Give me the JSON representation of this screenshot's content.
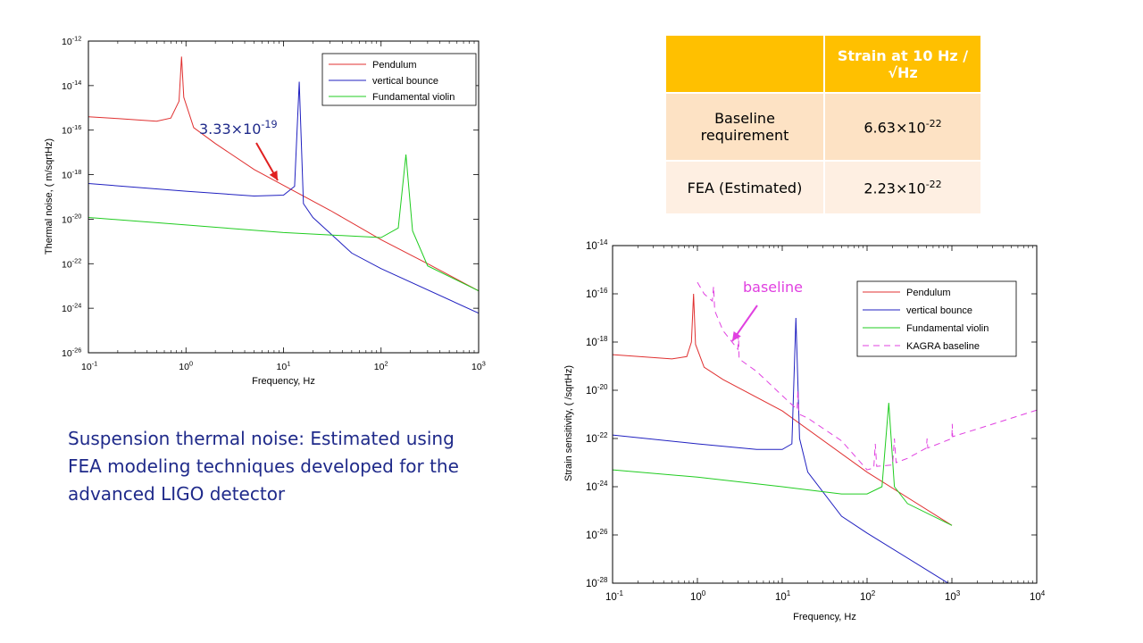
{
  "chart_data": [
    {
      "type": "line",
      "xlabel": "Frequency, Hz",
      "ylabel": "Thermal noise, ( m/sqrtHz)",
      "xscale": "log",
      "yscale": "log",
      "xlim": [
        0.1,
        1000
      ],
      "ylim": [
        1e-26,
        1e-12
      ],
      "x_tick_labels": [
        {
          "base": "10",
          "exp": "-1"
        },
        {
          "base": "10",
          "exp": "0"
        },
        {
          "base": "10",
          "exp": "1"
        },
        {
          "base": "10",
          "exp": "2"
        },
        {
          "base": "10",
          "exp": "3"
        }
      ],
      "y_tick_labels": [
        {
          "base": "10",
          "exp": "-26"
        },
        {
          "base": "10",
          "exp": "-24"
        },
        {
          "base": "10",
          "exp": "-22"
        },
        {
          "base": "10",
          "exp": "-20"
        },
        {
          "base": "10",
          "exp": "-18"
        },
        {
          "base": "10",
          "exp": "-16"
        },
        {
          "base": "10",
          "exp": "-14"
        },
        {
          "base": "10",
          "exp": "-12"
        }
      ],
      "legend_position": "top-right",
      "series": [
        {
          "name": "Pendulum",
          "color": "#e03030",
          "style": "solid",
          "x": [
            0.1,
            0.2,
            0.5,
            0.7,
            0.85,
            0.9,
            0.95,
            1.2,
            2,
            5,
            10,
            30,
            100,
            300,
            1000
          ],
          "y": [
            4e-16,
            3.3e-16,
            2.5e-16,
            3.5e-16,
            2e-15,
            2e-13,
            3e-15,
            1.3e-16,
            2.5e-17,
            1.7e-18,
            3.3e-19,
            2.5e-20,
            1.2e-21,
            1e-22,
            6e-24
          ]
        },
        {
          "name": "vertical bounce",
          "color": "#2020c0",
          "style": "solid",
          "x": [
            0.1,
            1,
            5,
            10,
            13,
            14.5,
            16,
            20,
            50,
            100,
            1000
          ],
          "y": [
            4e-19,
            1.8e-19,
            1.1e-19,
            1.2e-19,
            3e-19,
            1.5e-14,
            5e-20,
            1.2e-20,
            3e-22,
            6e-23,
            6e-25
          ]
        },
        {
          "name": "Fundamental violin",
          "color": "#20cc20",
          "style": "solid",
          "x": [
            0.1,
            1,
            10,
            100,
            150,
            180,
            210,
            300,
            1000
          ],
          "y": [
            1.2e-20,
            5.5e-21,
            2.5e-21,
            1.5e-21,
            4e-21,
            8e-18,
            3e-21,
            8e-23,
            6e-24
          ]
        }
      ],
      "annotations": [
        {
          "text_base": "3.33×10",
          "text_exp": "-19"
        }
      ]
    },
    {
      "type": "line",
      "xlabel": "Frequency, Hz",
      "ylabel": "Strain sensitivity, ( /sqrtHz)",
      "xscale": "log",
      "yscale": "log",
      "xlim": [
        0.1,
        10000
      ],
      "ylim": [
        1e-28,
        1e-14
      ],
      "x_tick_labels": [
        {
          "base": "10",
          "exp": "-1"
        },
        {
          "base": "10",
          "exp": "0"
        },
        {
          "base": "10",
          "exp": "1"
        },
        {
          "base": "10",
          "exp": "2"
        },
        {
          "base": "10",
          "exp": "3"
        },
        {
          "base": "10",
          "exp": "4"
        }
      ],
      "y_tick_labels": [
        {
          "base": "10",
          "exp": "-28"
        },
        {
          "base": "10",
          "exp": "-26"
        },
        {
          "base": "10",
          "exp": "-24"
        },
        {
          "base": "10",
          "exp": "-22"
        },
        {
          "base": "10",
          "exp": "-20"
        },
        {
          "base": "10",
          "exp": "-18"
        },
        {
          "base": "10",
          "exp": "-16"
        },
        {
          "base": "10",
          "exp": "-14"
        }
      ],
      "legend_position": "top-right",
      "series": [
        {
          "name": "Pendulum",
          "color": "#e03030",
          "style": "solid",
          "x": [
            0.1,
            0.5,
            0.75,
            0.85,
            0.9,
            0.95,
            1.2,
            2,
            10,
            100,
            1000
          ],
          "y": [
            3e-19,
            2e-19,
            2.5e-19,
            1e-18,
            1e-16,
            8e-19,
            9e-20,
            2.8e-20,
            1.4e-21,
            4e-24,
            2.5e-26
          ]
        },
        {
          "name": "vertical bounce",
          "color": "#2020c0",
          "style": "solid",
          "x": [
            0.1,
            1,
            5,
            10,
            13,
            14.5,
            16,
            20,
            50,
            100,
            1000
          ],
          "y": [
            1.4e-22,
            6e-23,
            3.5e-23,
            3.5e-23,
            6e-23,
            1e-17,
            1e-22,
            4e-24,
            6e-26,
            1.2e-26,
            8e-29
          ]
        },
        {
          "name": "Fundamental violin",
          "color": "#20cc20",
          "style": "solid",
          "x": [
            0.1,
            1,
            10,
            50,
            100,
            150,
            180,
            210,
            300,
            1000
          ],
          "y": [
            5e-24,
            2.5e-24,
            1e-24,
            5e-25,
            5e-25,
            1e-24,
            3e-21,
            1e-24,
            2e-25,
            2.5e-26
          ]
        },
        {
          "name": "KAGRA baseline",
          "color": "#e040e0",
          "style": "dashed",
          "x": [
            1,
            1.2,
            1.5,
            1.55,
            1.6,
            2,
            3,
            3.05,
            3.1,
            5,
            10,
            15,
            15.3,
            15.6,
            16,
            20,
            50,
            100,
            120,
            125,
            130,
            200,
            210,
            220,
            300,
            500,
            510,
            520,
            1000,
            1010,
            1020,
            2000,
            10000
          ],
          "y": [
            3e-16,
            1e-16,
            5e-17,
            2e-16,
            2e-17,
            3e-18,
            5e-19,
            2e-18,
            2e-19,
            6e-20,
            6e-21,
            1.6e-21,
            1e-20,
            1.6e-21,
            1e-21,
            7e-22,
            8e-23,
            5e-24,
            6e-24,
            6e-23,
            7e-24,
            8e-24,
            1e-22,
            1e-23,
            1.5e-23,
            4e-23,
            1e-22,
            4e-23,
            1e-22,
            4e-22,
            1.2e-22,
            2.5e-22,
            1.5e-21
          ]
        }
      ],
      "annotations": [
        {
          "text": "baseline"
        }
      ]
    }
  ],
  "table": {
    "header": [
      "",
      "Strain at 10 Hz /√Hz"
    ],
    "rows": [
      {
        "label": "Baseline requirement",
        "base": "6.63×10",
        "exp": "-22"
      },
      {
        "label": "FEA (Estimated)",
        "base": "2.23×10",
        "exp": "-22"
      }
    ]
  },
  "caption": "Suspension thermal noise: Estimated using FEA modeling techniques developed for the advanced LIGO detector"
}
